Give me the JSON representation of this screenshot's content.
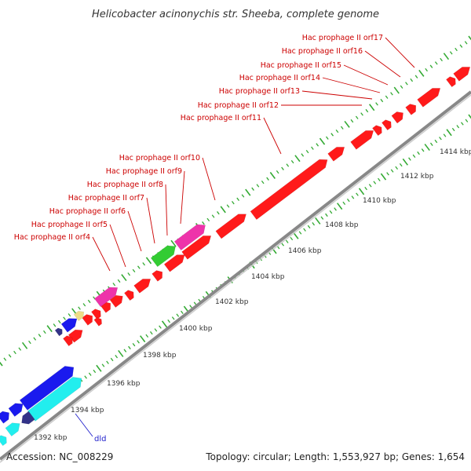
{
  "title": "Helicobacter acinonychis str. Sheeba, complete genome",
  "footer": {
    "accession": "Accession: NC_008229",
    "summary": "Topology: circular; Length: 1,553,927 bp; Genes: 1,654"
  },
  "colors": {
    "backbone": "#888888",
    "tick_green": "#33aa33",
    "red_feature": "#ff1a1a",
    "blue_feature": "#1a1aee",
    "cyan_feature": "#22eeee",
    "pink_feature": "#ee33aa",
    "green_feature": "#33cc33",
    "yellow_feature": "#eedd88",
    "navy_feature": "#333388",
    "orf_label": "#cc0000",
    "gene_label": "#2222cc"
  },
  "scale": {
    "unit": "kbp",
    "ticks": [
      "1392 kbp",
      "1394 kbp",
      "1396 kbp",
      "1398 kbp",
      "1400 kbp",
      "1402 kbp",
      "1404 kbp",
      "1406 kbp",
      "1408 kbp",
      "1410 kbp",
      "1412 kbp",
      "1414 kbp"
    ]
  },
  "orf_labels": [
    "Hac prophage II orf4",
    "Hac prophage II orf5",
    "Hac prophage II orf6",
    "Hac prophage II orf7",
    "Hac prophage II orf8",
    "Hac prophage II orf9",
    "Hac prophage II orf10",
    "Hac prophage II orf11",
    "Hac prophage II orf12",
    "Hac prophage II orf13",
    "Hac prophage II orf14",
    "Hac prophage II orf15",
    "Hac prophage II orf16",
    "Hac prophage II orf17"
  ],
  "gene_labels": [
    "dld"
  ]
}
